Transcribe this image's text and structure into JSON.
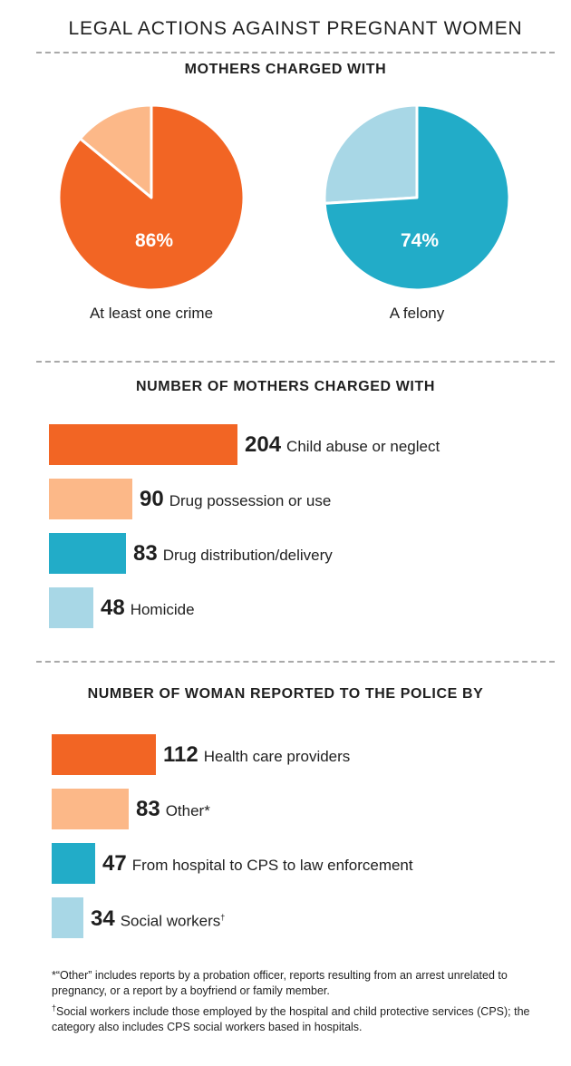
{
  "title": "LEGAL ACTIONS AGAINST PREGNANT WOMEN",
  "colors": {
    "orange": "#f26524",
    "peach": "#fcb888",
    "teal": "#22acc8",
    "lightblue": "#a8d7e6"
  },
  "chart_data": [
    {
      "type": "pie",
      "title": "MOTHERS CHARGED WITH",
      "charts": [
        {
          "caption": "At least one crime",
          "value": 86,
          "value_label": "86%",
          "remainder": 14
        },
        {
          "caption": "A felony",
          "value": 74,
          "value_label": "74%",
          "remainder": 26
        }
      ]
    },
    {
      "type": "bar",
      "title": "NUMBER OF MOTHERS CHARGED WITH",
      "categories": [
        "Child abuse or neglect",
        "Drug possession or use",
        "Drug distribution/delivery",
        "Homicide"
      ],
      "values": [
        204,
        90,
        83,
        48
      ]
    },
    {
      "type": "bar",
      "title": "NUMBER OF WOMAN REPORTED TO THE POLICE BY",
      "categories": [
        "Health care providers",
        "Other*",
        "From hospital to CPS to law enforcement",
        "Social workers"
      ],
      "label_suffixes": [
        "",
        "",
        "",
        "†"
      ],
      "values": [
        112,
        83,
        47,
        34
      ]
    }
  ],
  "footnotes": {
    "star": "*“Other” includes reports by a probation officer, reports resulting from an arrest unrelated to pregnancy, or a report by a boyfriend or family member.",
    "dagger_mark": "†",
    "dagger": "Social workers include those employed by the hospital and child protective services (CPS); the category also includes CPS social workers based in hospitals."
  }
}
